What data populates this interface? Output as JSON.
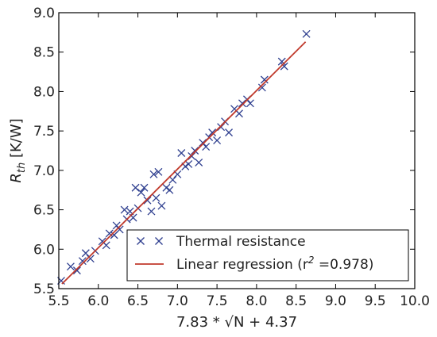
{
  "chart_data": {
    "type": "scatter",
    "xlabel": "7.83 * √N + 4.37",
    "ylabel_main": "R",
    "ylabel_sub": "th",
    "ylabel_unit": " [K/W]",
    "xlim": [
      5.5,
      10.0
    ],
    "ylim": [
      5.5,
      9.0
    ],
    "xticks": [
      "5.5",
      "6.0",
      "6.5",
      "7.0",
      "7.5",
      "8.0",
      "8.5",
      "9.0",
      "9.5",
      "10.0"
    ],
    "yticks": [
      "5.5",
      "6.0",
      "6.5",
      "7.0",
      "7.5",
      "8.0",
      "8.5",
      "9.0"
    ],
    "grid": false,
    "legend_position": "lower-right",
    "series": [
      {
        "name": "Thermal resistance",
        "kind": "scatter",
        "marker": "x",
        "color": "#2f3f8f",
        "points": [
          [
            5.53,
            5.6
          ],
          [
            5.65,
            5.78
          ],
          [
            5.73,
            5.73
          ],
          [
            5.8,
            5.85
          ],
          [
            5.84,
            5.95
          ],
          [
            5.9,
            5.88
          ],
          [
            5.96,
            5.98
          ],
          [
            6.05,
            6.1
          ],
          [
            6.1,
            6.05
          ],
          [
            6.14,
            6.2
          ],
          [
            6.2,
            6.18
          ],
          [
            6.23,
            6.3
          ],
          [
            6.27,
            6.25
          ],
          [
            6.33,
            6.5
          ],
          [
            6.36,
            6.38
          ],
          [
            6.4,
            6.48
          ],
          [
            6.44,
            6.4
          ],
          [
            6.47,
            6.78
          ],
          [
            6.5,
            6.52
          ],
          [
            6.54,
            6.72
          ],
          [
            6.58,
            6.78
          ],
          [
            6.62,
            6.62
          ],
          [
            6.67,
            6.48
          ],
          [
            6.7,
            6.95
          ],
          [
            6.73,
            6.65
          ],
          [
            6.76,
            6.98
          ],
          [
            6.8,
            6.55
          ],
          [
            6.86,
            6.78
          ],
          [
            6.9,
            6.75
          ],
          [
            6.94,
            6.88
          ],
          [
            7.0,
            6.95
          ],
          [
            7.05,
            7.22
          ],
          [
            7.1,
            7.05
          ],
          [
            7.14,
            7.08
          ],
          [
            7.18,
            7.18
          ],
          [
            7.22,
            7.25
          ],
          [
            7.27,
            7.1
          ],
          [
            7.32,
            7.35
          ],
          [
            7.36,
            7.3
          ],
          [
            7.4,
            7.42
          ],
          [
            7.44,
            7.48
          ],
          [
            7.5,
            7.38
          ],
          [
            7.55,
            7.55
          ],
          [
            7.6,
            7.62
          ],
          [
            7.65,
            7.48
          ],
          [
            7.72,
            7.78
          ],
          [
            7.78,
            7.72
          ],
          [
            7.82,
            7.85
          ],
          [
            7.88,
            7.9
          ],
          [
            7.92,
            7.85
          ],
          [
            8.07,
            8.05
          ],
          [
            8.1,
            8.15
          ],
          [
            8.32,
            8.38
          ],
          [
            8.35,
            8.32
          ],
          [
            8.63,
            8.73
          ]
        ]
      },
      {
        "name": "Linear regression (r",
        "name_sup": "2",
        "name_tail": " =0.978)",
        "kind": "line",
        "color": "#c0392b",
        "points": [
          [
            5.54,
            5.56
          ],
          [
            8.62,
            8.63
          ]
        ]
      }
    ]
  }
}
